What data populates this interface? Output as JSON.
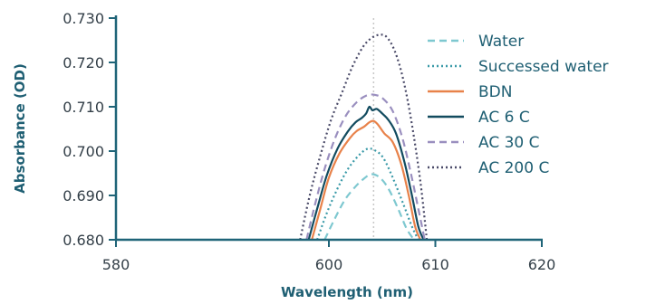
{
  "chart_data": {
    "type": "line",
    "xlabel": "Wavelength (nm)",
    "ylabel": "Absorbance (OD)",
    "xlim": [
      580,
      620
    ],
    "ylim": [
      0.68,
      0.73
    ],
    "x_ticks": [
      "580",
      "600",
      "610",
      "620"
    ],
    "x_tick_values": [
      580,
      600,
      610,
      620
    ],
    "y_ticks": [
      "0.730",
      "0.720",
      "0.710",
      "0.700",
      "0.690",
      "0.680"
    ],
    "y_tick_values": [
      0.73,
      0.72,
      0.71,
      0.7,
      0.69,
      0.68
    ],
    "grid": false,
    "reference_line": {
      "x": 604.2,
      "style": "dotted",
      "color": "#c8c8c8"
    },
    "legend_position": "right",
    "series": [
      {
        "name": "Water",
        "color": "#7ec8d0",
        "dash": "dashed",
        "x": [
          599.6,
          600.5,
          601.5,
          602.5,
          603.3,
          604.0,
          604.8,
          605.6,
          606.5,
          607.3,
          608.0
        ],
        "y": [
          0.68,
          0.6845,
          0.689,
          0.692,
          0.6938,
          0.6948,
          0.694,
          0.6915,
          0.687,
          0.6825,
          0.68
        ]
      },
      {
        "name": "Successed water",
        "color": "#3a9aa8",
        "dash": "dotted",
        "x": [
          598.9,
          599.8,
          600.8,
          601.8,
          602.8,
          603.6,
          604.3,
          605.1,
          606.0,
          607.0,
          607.8,
          608.4
        ],
        "y": [
          0.68,
          0.686,
          0.6915,
          0.696,
          0.699,
          0.7005,
          0.7002,
          0.6985,
          0.694,
          0.688,
          0.683,
          0.68
        ]
      },
      {
        "name": "BDN",
        "color": "#e8824a",
        "dash": "solid",
        "x": [
          598.4,
          599.2,
          600.0,
          601.0,
          602.0,
          602.6,
          603.3,
          603.8,
          604.2,
          604.6,
          605.2,
          606.0,
          606.8,
          607.5,
          608.1,
          608.6
        ],
        "y": [
          0.68,
          0.687,
          0.694,
          0.6995,
          0.703,
          0.7045,
          0.7055,
          0.7065,
          0.7068,
          0.706,
          0.704,
          0.702,
          0.697,
          0.69,
          0.683,
          0.68
        ]
      },
      {
        "name": "AC 6 C",
        "color": "#124b5f",
        "dash": "solid",
        "x": [
          598.1,
          598.9,
          599.8,
          600.8,
          601.8,
          602.5,
          603.1,
          603.5,
          603.8,
          604.1,
          604.5,
          605.0,
          605.6,
          606.3,
          607.1,
          607.8,
          608.4,
          608.9
        ],
        "y": [
          0.68,
          0.687,
          0.6945,
          0.7005,
          0.7045,
          0.7065,
          0.7075,
          0.7085,
          0.71,
          0.7092,
          0.7095,
          0.7085,
          0.707,
          0.704,
          0.6975,
          0.69,
          0.683,
          0.68
        ]
      },
      {
        "name": "AC 30 C",
        "color": "#9a8fbf",
        "dash": "dashed",
        "x": [
          597.9,
          598.7,
          599.6,
          600.6,
          601.6,
          602.6,
          603.5,
          604.3,
          605.1,
          606.0,
          606.9,
          607.7,
          608.4,
          609.0
        ],
        "y": [
          0.68,
          0.688,
          0.696,
          0.703,
          0.708,
          0.711,
          0.7125,
          0.7127,
          0.7118,
          0.709,
          0.703,
          0.695,
          0.687,
          0.68
        ]
      },
      {
        "name": "AC 200 C",
        "color": "#4a4a68",
        "dash": "dotted",
        "x": [
          597.3,
          598.2,
          599.2,
          600.2,
          601.2,
          602.2,
          603.2,
          604.0,
          604.7,
          605.4,
          606.2,
          607.0,
          607.8,
          608.6,
          609.2
        ],
        "y": [
          0.68,
          0.69,
          0.699,
          0.707,
          0.713,
          0.719,
          0.7235,
          0.7255,
          0.7262,
          0.7258,
          0.7225,
          0.716,
          0.706,
          0.693,
          0.68
        ]
      }
    ]
  }
}
